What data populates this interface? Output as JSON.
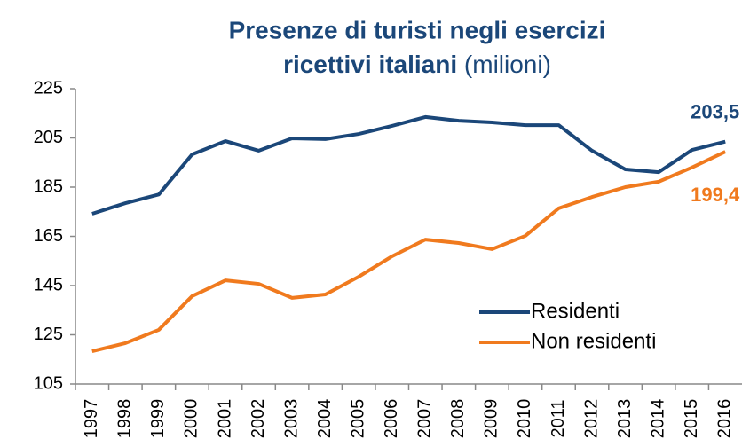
{
  "chart_data": {
    "type": "line",
    "title": [
      "Presenze di turisti negli esercizi",
      "ricettivi italiani"
    ],
    "subtitle": "(milioni)",
    "categories": [
      "1997",
      "1998",
      "1999",
      "2000",
      "2001",
      "2002",
      "2003",
      "2004",
      "2005",
      "2006",
      "2007",
      "2008",
      "2009",
      "2010",
      "2011",
      "2012",
      "2013",
      "2014",
      "2015",
      "2016"
    ],
    "series": [
      {
        "name": "Residenti",
        "color": "#1b4779",
        "values": [
          174.2,
          178.5,
          182,
          198.3,
          203.7,
          199.8,
          204.8,
          204.5,
          206.6,
          209.9,
          213.5,
          212,
          211.3,
          210.2,
          210.2,
          199.8,
          192.2,
          191.1,
          200.1,
          203.5
        ],
        "value_labels": [
          null,
          null,
          null,
          null,
          null,
          null,
          null,
          null,
          null,
          null,
          null,
          null,
          null,
          null,
          null,
          null,
          null,
          null,
          null,
          "203,5"
        ]
      },
      {
        "name": "Non residenti",
        "color": "#f07a1e",
        "values": [
          118.3,
          121.6,
          127,
          140.7,
          147.1,
          145.7,
          140,
          141.4,
          148.6,
          156.9,
          163.7,
          162.3,
          159.8,
          165.2,
          176.4,
          181,
          185,
          187.2,
          193,
          199.4
        ],
        "value_labels": [
          null,
          null,
          null,
          null,
          null,
          null,
          null,
          null,
          null,
          null,
          null,
          null,
          null,
          null,
          null,
          null,
          null,
          null,
          null,
          "199,4"
        ]
      }
    ],
    "ylim": [
      105,
      225
    ],
    "yticks": [
      105,
      125,
      145,
      165,
      185,
      205,
      225
    ],
    "grid": false,
    "legend": "lower right"
  }
}
